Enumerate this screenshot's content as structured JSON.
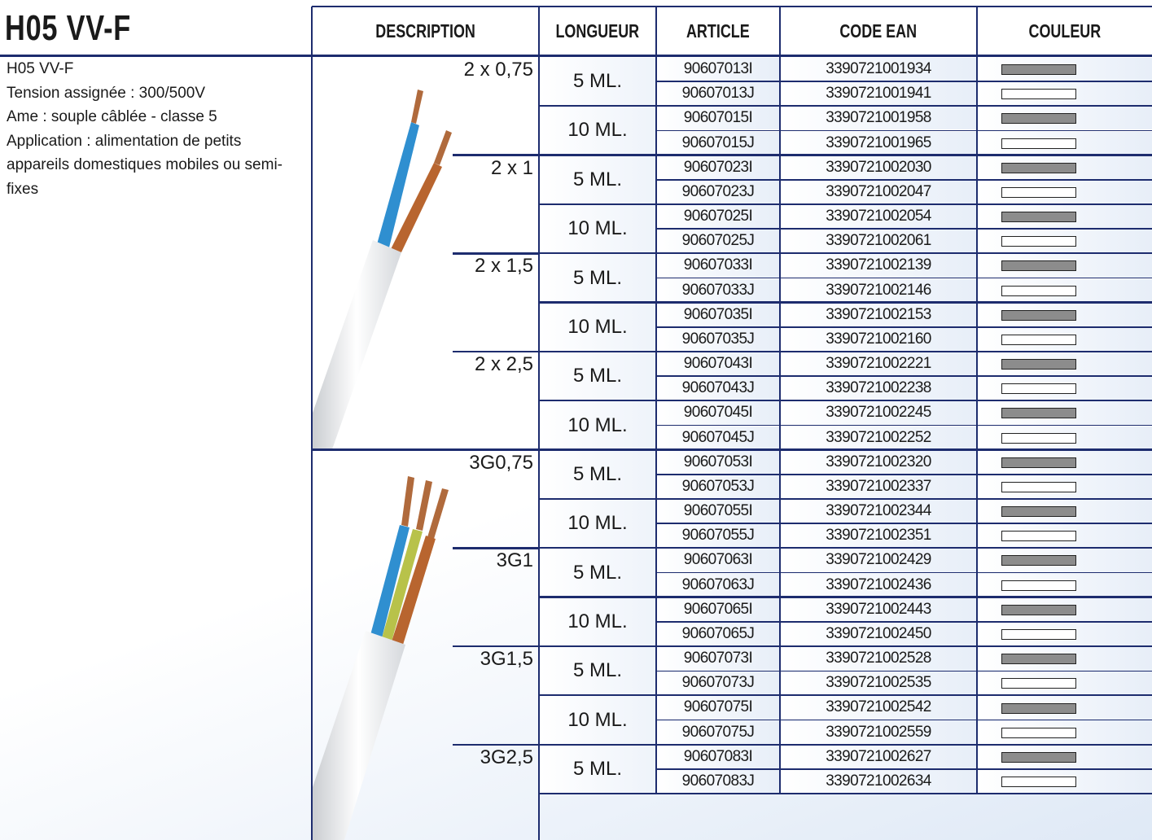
{
  "header": {
    "title": "H05 VV-F",
    "columns": [
      "DESCRIPTION",
      "LONGUEUR",
      "ARTICLE",
      "CODE EAN",
      "COULEUR"
    ]
  },
  "description": {
    "name": "H05 VV-F",
    "lines": [
      "Tension assignée : 300/500V",
      "Ame : souple câblée - classe 5",
      "Application : alimentation de petits appareils domestiques mobiles ou semi-fixes"
    ]
  },
  "table": {
    "blocks": [
      {
        "groups": [
          {
            "size": "2 x 0,75",
            "lengths": [
              {
                "length": "5 ML.",
                "rows": [
                  {
                    "article": "90607013I",
                    "ean": "3390721001934",
                    "color": "#8c8c8c"
                  },
                  {
                    "article": "90607013J",
                    "ean": "3390721001941",
                    "color": "#ffffff"
                  }
                ]
              },
              {
                "length": "10 ML.",
                "rows": [
                  {
                    "article": "90607015I",
                    "ean": "3390721001958",
                    "color": "#8c8c8c"
                  },
                  {
                    "article": "90607015J",
                    "ean": "3390721001965",
                    "color": "#ffffff"
                  }
                ]
              }
            ]
          },
          {
            "size": "2 x 1",
            "lengths": [
              {
                "length": "5 ML.",
                "rows": [
                  {
                    "article": "90607023I",
                    "ean": "3390721002030",
                    "color": "#8c8c8c"
                  },
                  {
                    "article": "90607023J",
                    "ean": "3390721002047",
                    "color": "#ffffff"
                  }
                ]
              },
              {
                "length": "10 ML.",
                "rows": [
                  {
                    "article": "90607025I",
                    "ean": "3390721002054",
                    "color": "#8c8c8c"
                  },
                  {
                    "article": "90607025J",
                    "ean": "3390721002061",
                    "color": "#ffffff"
                  }
                ]
              }
            ]
          },
          {
            "size": "2 x 1,5",
            "lengths": [
              {
                "length": "5 ML.",
                "rows": [
                  {
                    "article": "90607033I",
                    "ean": "3390721002139",
                    "color": "#8c8c8c"
                  },
                  {
                    "article": "90607033J",
                    "ean": "3390721002146",
                    "color": "#ffffff"
                  }
                ]
              },
              {
                "length": "10 ML.",
                "rows": [
                  {
                    "article": "90607035I",
                    "ean": "3390721002153",
                    "color": "#8c8c8c"
                  },
                  {
                    "article": "90607035J",
                    "ean": "3390721002160",
                    "color": "#ffffff"
                  }
                ]
              }
            ]
          },
          {
            "size": "2 x 2,5",
            "lengths": [
              {
                "length": "5 ML.",
                "rows": [
                  {
                    "article": "90607043I",
                    "ean": "3390721002221",
                    "color": "#8c8c8c"
                  },
                  {
                    "article": "90607043J",
                    "ean": "3390721002238",
                    "color": "#ffffff"
                  }
                ]
              },
              {
                "length": "10 ML.",
                "rows": [
                  {
                    "article": "90607045I",
                    "ean": "3390721002245",
                    "color": "#8c8c8c"
                  },
                  {
                    "article": "90607045J",
                    "ean": "3390721002252",
                    "color": "#ffffff"
                  }
                ]
              }
            ]
          }
        ]
      },
      {
        "groups": [
          {
            "size": "3G0,75",
            "lengths": [
              {
                "length": "5 ML.",
                "rows": [
                  {
                    "article": "90607053I",
                    "ean": "3390721002320",
                    "color": "#8c8c8c"
                  },
                  {
                    "article": "90607053J",
                    "ean": "3390721002337",
                    "color": "#ffffff"
                  }
                ]
              },
              {
                "length": "10 ML.",
                "rows": [
                  {
                    "article": "90607055I",
                    "ean": "3390721002344",
                    "color": "#8c8c8c"
                  },
                  {
                    "article": "90607055J",
                    "ean": "3390721002351",
                    "color": "#ffffff"
                  }
                ]
              }
            ]
          },
          {
            "size": "3G1",
            "lengths": [
              {
                "length": "5 ML.",
                "rows": [
                  {
                    "article": "90607063I",
                    "ean": "3390721002429",
                    "color": "#8c8c8c"
                  },
                  {
                    "article": "90607063J",
                    "ean": "3390721002436",
                    "color": "#ffffff"
                  }
                ]
              },
              {
                "length": "10 ML.",
                "rows": [
                  {
                    "article": "90607065I",
                    "ean": "3390721002443",
                    "color": "#8c8c8c"
                  },
                  {
                    "article": "90607065J",
                    "ean": "3390721002450",
                    "color": "#ffffff"
                  }
                ]
              }
            ]
          },
          {
            "size": "3G1,5",
            "lengths": [
              {
                "length": "5 ML.",
                "rows": [
                  {
                    "article": "90607073I",
                    "ean": "3390721002528",
                    "color": "#8c8c8c"
                  },
                  {
                    "article": "90607073J",
                    "ean": "3390721002535",
                    "color": "#ffffff"
                  }
                ]
              },
              {
                "length": "10 ML.",
                "rows": [
                  {
                    "article": "90607075I",
                    "ean": "3390721002542",
                    "color": "#8c8c8c"
                  },
                  {
                    "article": "90607075J",
                    "ean": "3390721002559",
                    "color": "#ffffff"
                  }
                ]
              }
            ]
          },
          {
            "size": "3G2,5",
            "lengths": [
              {
                "length": "5 ML.",
                "rows": [
                  {
                    "article": "90607083I",
                    "ean": "3390721002627",
                    "color": "#8c8c8c"
                  },
                  {
                    "article": "90607083J",
                    "ean": "3390721002634",
                    "color": "#ffffff"
                  }
                ]
              }
            ]
          }
        ]
      }
    ]
  }
}
